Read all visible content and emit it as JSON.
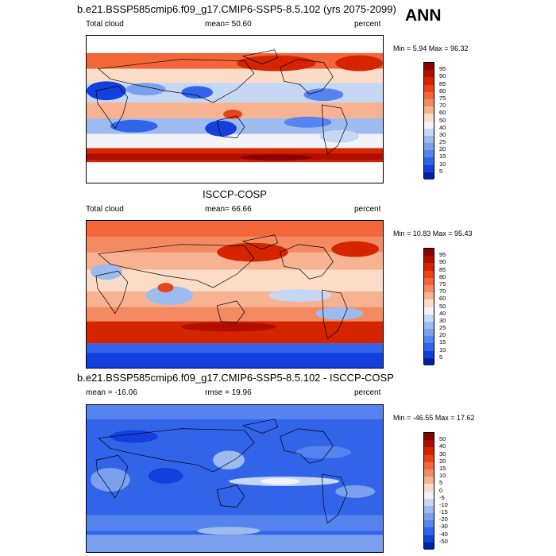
{
  "header": {
    "season": "ANN"
  },
  "panels": [
    {
      "title": "b.e21.BSSP585cmip6.f09_g17.CMIP6-SSP5-8.5.102 (yrs 2075-2099)",
      "left_label": "Total cloud",
      "center_label": "mean=  50.60",
      "right_label": "percent",
      "minmax": "Min =   5.94 Max =  96.32",
      "colorbar": {
        "labels": [
          "95",
          "90",
          "85",
          "80",
          "75",
          "70",
          "60",
          "50",
          "40",
          "30",
          "25",
          "20",
          "15",
          "10",
          "5"
        ],
        "colors": [
          "#8b0000",
          "#b00f00",
          "#d42400",
          "#e8431a",
          "#f2663a",
          "#f38a61",
          "#f7b291",
          "#fbdcc6",
          "#f1f3f8",
          "#c6d7f4",
          "#9dbbef",
          "#7aa0ee",
          "#5584ee",
          "#3264ea",
          "#1140dc",
          "#00209e"
        ]
      }
    },
    {
      "title": "ISCCP-COSP",
      "left_label": "Total cloud",
      "center_label": "mean=  66.66",
      "right_label": "percent",
      "minmax": "Min =  10.83 Max =  95.43",
      "colorbar": {
        "labels": [
          "95",
          "90",
          "85",
          "80",
          "75",
          "70",
          "60",
          "50",
          "40",
          "30",
          "25",
          "20",
          "15",
          "10",
          "5"
        ],
        "colors": [
          "#8b0000",
          "#b00f00",
          "#d42400",
          "#e8431a",
          "#f2663a",
          "#f38a61",
          "#f7b291",
          "#fbdcc6",
          "#f1f3f8",
          "#c6d7f4",
          "#9dbbef",
          "#7aa0ee",
          "#5584ee",
          "#3264ea",
          "#1140dc",
          "#00209e"
        ]
      }
    },
    {
      "title": "b.e21.BSSP585cmip6.f09_g17.CMIP6-SSP5-8.5.102 - ISCCP-COSP",
      "left_label": "mean = -16.06",
      "center_label": "rmse =  19.96",
      "right_label": "percent",
      "minmax": "Min = -46.55 Max =  17.62",
      "colorbar": {
        "labels": [
          "50",
          "40",
          "30",
          "20",
          "15",
          "10",
          "5",
          "0",
          "-5",
          "-10",
          "-15",
          "-20",
          "-30",
          "-40",
          "-50"
        ],
        "colors": [
          "#8b0000",
          "#b00f00",
          "#d42400",
          "#e8431a",
          "#f2663a",
          "#f38a61",
          "#f7b291",
          "#fbdcc6",
          "#f1f3f8",
          "#c6d7f4",
          "#9dbbef",
          "#7aa0ee",
          "#5584ee",
          "#3264ea",
          "#1140dc",
          "#00209e"
        ]
      }
    }
  ]
}
